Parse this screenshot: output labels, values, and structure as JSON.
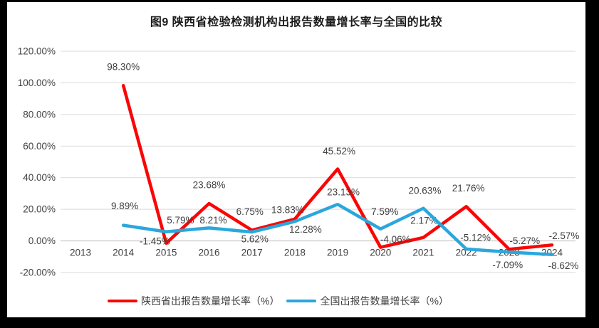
{
  "figure": {
    "title": "图9  陕西省检验检测机构出报告数量增长率与全国的比较"
  },
  "chart_data": {
    "type": "line",
    "title": "图9  陕西省检验检测机构出报告数量增长率与全国的比较",
    "xlabel": "",
    "ylabel": "",
    "grid": true,
    "legend_position": "bottom",
    "categories": [
      "2013",
      "2014",
      "2015",
      "2016",
      "2017",
      "2018",
      "2019",
      "2020",
      "2021",
      "2022",
      "2023",
      "2024"
    ],
    "y_axis": {
      "min": -20,
      "max": 120,
      "step": 20,
      "tick_labels": [
        "120.00%",
        "100.00%",
        "80.00%",
        "60.00%",
        "40.00%",
        "20.00%",
        "0.00%",
        "-20.00%"
      ]
    },
    "series": [
      {
        "name": "陕西省出报告数量增长率（%）",
        "color": "#fa0505",
        "values": [
          null,
          98.3,
          -1.45,
          23.68,
          6.75,
          13.83,
          45.52,
          -4.06,
          2.17,
          21.76,
          -5.27,
          -2.57
        ],
        "labels": [
          null,
          "98.30%",
          "-1.45%",
          "23.68%",
          "6.75%",
          "13.83%",
          "45.52%",
          "-4.06%",
          "2.17%",
          "21.76%",
          "-5.27%",
          "-2.57%"
        ],
        "label_offsets": [
          null,
          [
            0,
            -26
          ],
          [
            -16,
            -3
          ],
          [
            0,
            -26
          ],
          [
            -3,
            -26
          ],
          [
            -10,
            -13
          ],
          [
            2,
            -25
          ],
          [
            21,
            -11
          ],
          [
            1,
            -24
          ],
          [
            3,
            -26
          ],
          [
            22,
            -12
          ],
          [
            17,
            -13
          ]
        ]
      },
      {
        "name": "全国出报告数量增长率（%）",
        "color": "#2aa7dc",
        "values": [
          null,
          9.89,
          5.79,
          8.21,
          5.62,
          12.28,
          23.13,
          7.59,
          20.63,
          -5.12,
          -7.09,
          -8.62
        ],
        "labels": [
          null,
          "9.89%",
          "5.79%",
          "8.21%",
          "5.62%",
          "12.28%",
          "23.13%",
          "7.59%",
          "20.63%",
          "-5.12%",
          "-7.09%",
          "-8.62%"
        ],
        "label_offsets": [
          null,
          [
            2,
            -27
          ],
          [
            20,
            -16
          ],
          [
            6,
            -11
          ],
          [
            4,
            10
          ],
          [
            15,
            11
          ],
          [
            8,
            -17
          ],
          [
            6,
            -24
          ],
          [
            2,
            -25
          ],
          [
            13,
            -16
          ],
          [
            -2,
            18
          ],
          [
            16,
            16
          ]
        ]
      }
    ],
    "colors": {
      "gridline": "#d9d9d9",
      "zero_axis": "#bfbfbf",
      "tick_text": "#404040",
      "data_label_text": "#404040"
    }
  }
}
